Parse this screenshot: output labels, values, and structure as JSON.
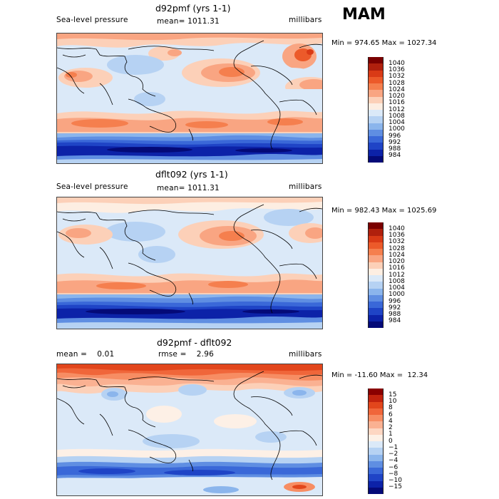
{
  "season": "MAM",
  "panels": [
    {
      "title": "d92pmf (yrs 1-1)",
      "left_label": "Sea-level pressure",
      "center_label": "mean= 1011.31",
      "right_label": "millibars",
      "minmax": "Min = 974.65 Max = 1027.34"
    },
    {
      "title": "dflt092 (yrs 1-1)",
      "left_label": "Sea-level pressure",
      "center_label": "mean= 1011.31",
      "right_label": "millibars",
      "minmax": "Min = 982.43 Max = 1025.69"
    },
    {
      "title": "d92pmf - dflt092",
      "left_label": "mean =    0.01",
      "center_label": "rmse =    2.96",
      "right_label": "millibars",
      "minmax": "Min = -11.60 Max =  12.34"
    }
  ],
  "legend_pressure": {
    "labels": [
      "1040",
      "1036",
      "1032",
      "1028",
      "1024",
      "1020",
      "1016",
      "1012",
      "1008",
      "1004",
      "1000",
      "996",
      "992",
      "988",
      "984"
    ],
    "colors": [
      "#7a0000",
      "#b0200d",
      "#d93a16",
      "#ec5a2a",
      "#f57f4e",
      "#f9a582",
      "#fcd0b8",
      "#fdeee2",
      "#dbe9f8",
      "#b6d2f3",
      "#8bb5ec",
      "#5f8ee2",
      "#3a68d8",
      "#1f44c6",
      "#0c22a8",
      "#040a78"
    ]
  },
  "legend_diff": {
    "labels": [
      "15",
      "10",
      "8",
      "6",
      "4",
      "2",
      "1",
      "0",
      "−1",
      "−2",
      "−4",
      "−6",
      "−8",
      "−10",
      "−15"
    ],
    "colors": [
      "#8a0000",
      "#c2230e",
      "#e2461c",
      "#f0663a",
      "#f78d63",
      "#fab192",
      "#fdd6c2",
      "#fdf0e6",
      "#dbe9f8",
      "#b6d2f3",
      "#8bb5ec",
      "#5f8ee2",
      "#3a68d8",
      "#1f44c6",
      "#0c22a8",
      "#040a78"
    ]
  }
}
